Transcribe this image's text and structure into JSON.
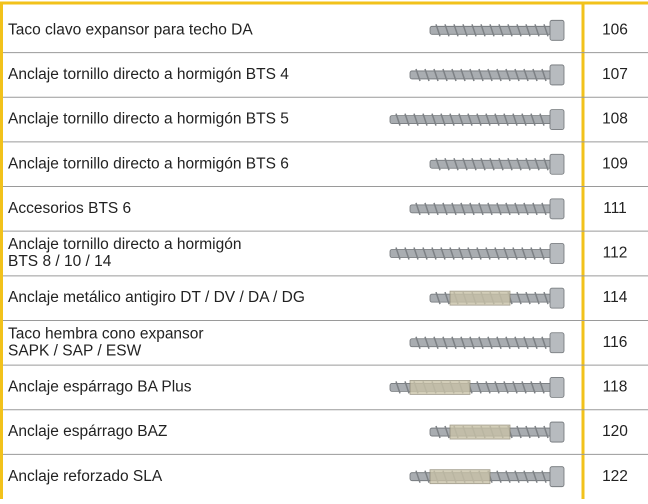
{
  "table": {
    "rows": [
      {
        "name": [
          "Taco clavo expansor para techo DA"
        ],
        "page": 106
      },
      {
        "name": [
          "Anclaje tornillo directo a hormigón BTS 4"
        ],
        "page": 107
      },
      {
        "name": [
          "Anclaje tornillo directo a hormigón BTS 5"
        ],
        "page": 108
      },
      {
        "name": [
          "Anclaje tornillo directo a hormigón BTS 6"
        ],
        "page": 109
      },
      {
        "name": [
          "Accesorios BTS 6"
        ],
        "page": 111
      },
      {
        "name": [
          "Anclaje tornillo directo a hormigón",
          "BTS 8 / 10 / 14"
        ],
        "page": 112
      },
      {
        "name": [
          "Anclaje metálico antigiro DT / DV / DA / DG"
        ],
        "page": 114
      },
      {
        "name": [
          "Taco hembra cono expansor",
          "SAPK / SAP / ESW"
        ],
        "page": 116
      },
      {
        "name": [
          "Anclaje espárrago BA Plus"
        ],
        "page": 118
      },
      {
        "name": [
          "Anclaje espárrago BAZ"
        ],
        "page": 120
      },
      {
        "name": [
          "Anclaje reforzado SLA"
        ],
        "page": 122
      }
    ]
  }
}
